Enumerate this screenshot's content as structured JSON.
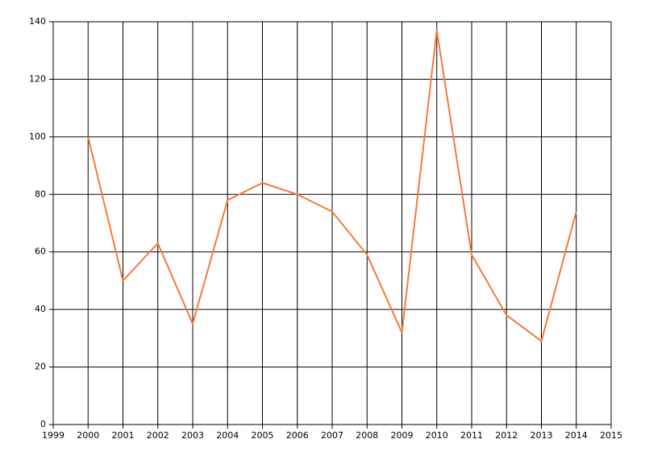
{
  "chart_data": {
    "type": "line",
    "x": [
      2000,
      2001,
      2002,
      2003,
      2004,
      2005,
      2006,
      2007,
      2008,
      2009,
      2010,
      2011,
      2012,
      2013,
      2014
    ],
    "series": [
      {
        "color": "#f47a3c",
        "values": [
          100,
          50,
          63,
          35,
          78,
          84,
          80,
          74,
          59,
          32,
          137,
          59,
          38,
          29,
          74
        ]
      }
    ],
    "xlim": [
      1999,
      2015
    ],
    "xticks": [
      1999,
      2000,
      2001,
      2002,
      2003,
      2004,
      2005,
      2006,
      2007,
      2008,
      2009,
      2010,
      2011,
      2012,
      2013,
      2014,
      2015
    ],
    "ylim": [
      0,
      140
    ],
    "yticks": [
      0,
      20,
      40,
      60,
      80,
      100,
      120,
      140
    ],
    "grid": true
  }
}
